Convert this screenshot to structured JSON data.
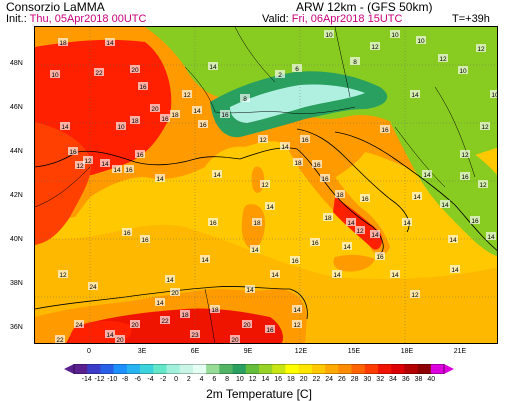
{
  "header": {
    "title": "Consorzio LaMMA",
    "model": "ARW 12km - (GFS 50km)",
    "init_label": "Init.:",
    "init_value": "Thu, 05Apr2018 00UTC",
    "valid_label": "Valid:",
    "valid_value": "Fri, 06Apr2018 15UTC",
    "forecast_step": "T=+39h"
  },
  "map": {
    "lat_labels": [
      "48N",
      "46N",
      "44N",
      "42N",
      "40N",
      "38N",
      "36N"
    ],
    "lon_labels": [
      "0",
      "3E",
      "6E",
      "9E",
      "12E",
      "15E",
      "18E",
      "21E"
    ],
    "colors": {
      "ocean_warm": "#ffb800",
      "ocean_mid": "#ffc800",
      "land_hot": "#ff2000",
      "africa_hot": "#ee1400",
      "iberia_hot": "#ff4000",
      "land_mild": "#ff9a00",
      "green_cool": "#88cc22",
      "alps_cold": "#2aa060",
      "alps_peak": "#b0f0e0",
      "country_border": "#000000",
      "coast": "#000000"
    },
    "temperature_labels": [
      {
        "text": "18"
      },
      {
        "text": "14"
      },
      {
        "text": "20"
      },
      {
        "text": "22"
      },
      {
        "text": "16"
      },
      {
        "text": "14"
      },
      {
        "text": "16"
      },
      {
        "text": "12"
      },
      {
        "text": "10"
      },
      {
        "text": "14"
      },
      {
        "text": "10"
      },
      {
        "text": "16"
      },
      {
        "text": "12"
      },
      {
        "text": "12"
      },
      {
        "text": "14"
      },
      {
        "text": "14"
      },
      {
        "text": "16"
      },
      {
        "text": "16"
      },
      {
        "text": "14"
      },
      {
        "text": "18"
      },
      {
        "text": "20"
      },
      {
        "text": "18"
      },
      {
        "text": "14"
      },
      {
        "text": "16"
      },
      {
        "text": "16"
      },
      {
        "text": "8"
      },
      {
        "text": "2"
      },
      {
        "text": "6"
      },
      {
        "text": "12"
      },
      {
        "text": "14"
      },
      {
        "text": "16"
      },
      {
        "text": "14"
      },
      {
        "text": "12"
      },
      {
        "text": "14"
      },
      {
        "text": "18"
      },
      {
        "text": "14"
      },
      {
        "text": "18"
      },
      {
        "text": "16"
      },
      {
        "text": "16"
      },
      {
        "text": "18"
      },
      {
        "text": "14"
      },
      {
        "text": "12"
      },
      {
        "text": "14"
      },
      {
        "text": "16"
      },
      {
        "text": "14"
      },
      {
        "text": "16"
      },
      {
        "text": "18"
      },
      {
        "text": "16"
      },
      {
        "text": "14"
      },
      {
        "text": "14"
      },
      {
        "text": "14"
      },
      {
        "text": "14"
      },
      {
        "text": "14"
      },
      {
        "text": "14"
      },
      {
        "text": "14"
      },
      {
        "text": "12"
      },
      {
        "text": "12"
      },
      {
        "text": "16"
      },
      {
        "text": "14"
      },
      {
        "text": "12"
      },
      {
        "text": "14"
      },
      {
        "text": "16"
      },
      {
        "text": "20"
      },
      {
        "text": "18"
      },
      {
        "text": "18"
      },
      {
        "text": "14"
      },
      {
        "text": "20"
      },
      {
        "text": "14"
      },
      {
        "text": "20"
      },
      {
        "text": "24"
      },
      {
        "text": "20"
      },
      {
        "text": "22"
      },
      {
        "text": "20"
      },
      {
        "text": "23"
      },
      {
        "text": "22"
      },
      {
        "text": "16"
      },
      {
        "text": "10"
      },
      {
        "text": "8"
      },
      {
        "text": "12"
      },
      {
        "text": "10"
      },
      {
        "text": "10"
      },
      {
        "text": "12"
      },
      {
        "text": "10"
      },
      {
        "text": "12"
      },
      {
        "text": "10"
      },
      {
        "text": "14"
      },
      {
        "text": "16"
      },
      {
        "text": "12"
      },
      {
        "text": "16"
      },
      {
        "text": "14"
      },
      {
        "text": "16"
      },
      {
        "text": "14"
      },
      {
        "text": "14"
      },
      {
        "text": "12"
      },
      {
        "text": "24"
      },
      {
        "text": "16"
      },
      {
        "text": "12"
      },
      {
        "text": "14"
      },
      {
        "text": "14"
      },
      {
        "text": "16"
      }
    ]
  },
  "colorbar": {
    "title": "2m Temperature [C]",
    "labels": [
      "-14",
      "-12",
      "-10",
      "-8",
      "-6",
      "-4",
      "-2",
      "0",
      "2",
      "4",
      "6",
      "8",
      "10",
      "12",
      "14",
      "16",
      "18",
      "20",
      "22",
      "24",
      "26",
      "28",
      "30",
      "32",
      "34",
      "36",
      "38",
      "40"
    ],
    "colors": [
      "#5a2090",
      "#3c3cc8",
      "#2860e8",
      "#1e90ff",
      "#28b4f0",
      "#3cd2dc",
      "#64e6c8",
      "#a0f0dc",
      "#c8f5e6",
      "#e6fff5",
      "#96dc96",
      "#50b464",
      "#2aa060",
      "#64be3c",
      "#96d228",
      "#c8e614",
      "#ffff00",
      "#ffe600",
      "#ffc800",
      "#ffaa00",
      "#ff8c00",
      "#ff6400",
      "#ff3c00",
      "#f01400",
      "#dc0000",
      "#b40000",
      "#8c0000",
      "#dc00dc"
    ]
  }
}
